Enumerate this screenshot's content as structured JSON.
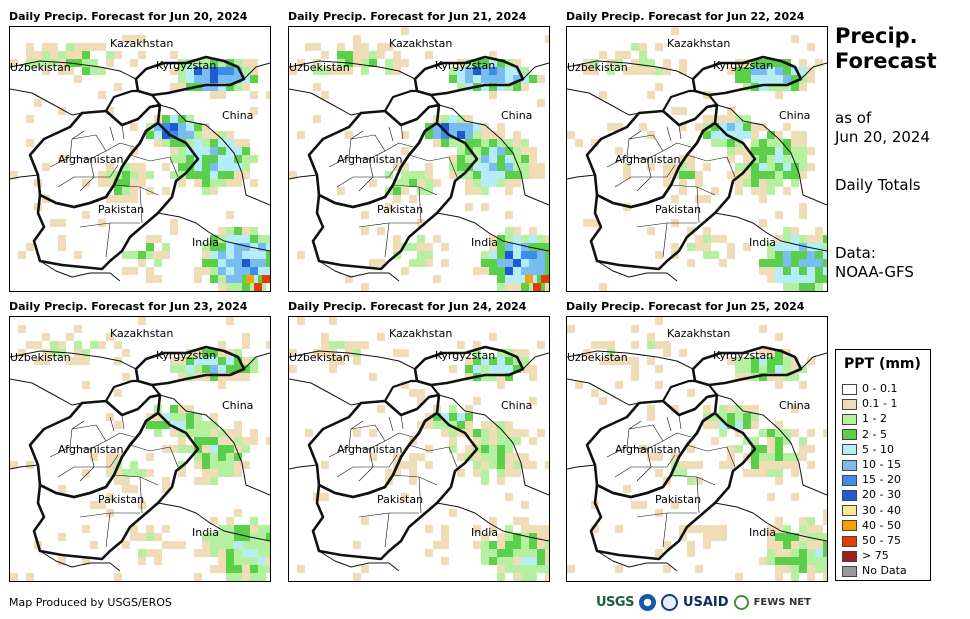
{
  "panels": [
    {
      "title": "Daily Precip. Forecast for Jun 20, 2024",
      "intensity": 0.95
    },
    {
      "title": "Daily Precip. Forecast for Jun 21, 2024",
      "intensity": 0.9
    },
    {
      "title": "Daily Precip. Forecast for Jun 22, 2024",
      "intensity": 0.75
    },
    {
      "title": "Daily Precip. Forecast for Jun 23, 2024",
      "intensity": 0.6
    },
    {
      "title": "Daily Precip. Forecast for Jun 24, 2024",
      "intensity": 0.55
    },
    {
      "title": "Daily Precip. Forecast for Jun 25, 2024",
      "intensity": 0.5
    }
  ],
  "map_labels": {
    "kazakhstan": "Kazakhstan",
    "uzbekistan": "Uzbekistan",
    "kyrgyzstan": "Kyrgyzstan",
    "china": "China",
    "afghanistan": "Afghanistan",
    "pakistan": "Pakistan",
    "india": "India"
  },
  "side": {
    "title_line1": "Precip.",
    "title_line2": "Forecast",
    "asof_line1": "as of",
    "asof_line2": "Jun 20, 2024",
    "totals": "Daily Totals",
    "data_line1": "Data:",
    "data_line2": "NOAA-GFS"
  },
  "legend": {
    "title": "PPT (mm)",
    "items": [
      {
        "label": "0 - 0.1",
        "color": "#ffffff"
      },
      {
        "label": "0.1 - 1",
        "color": "#f1dcb8"
      },
      {
        "label": "1 - 2",
        "color": "#b4f0a0"
      },
      {
        "label": "2 - 5",
        "color": "#5ad04a"
      },
      {
        "label": "5 - 10",
        "color": "#b4ecf8"
      },
      {
        "label": "10 - 15",
        "color": "#78bcf0"
      },
      {
        "label": "15 - 20",
        "color": "#3c8ce8"
      },
      {
        "label": "20 - 30",
        "color": "#1e5ad2"
      },
      {
        "label": "30 - 40",
        "color": "#fae68c"
      },
      {
        "label": "40 - 50",
        "color": "#faa000"
      },
      {
        "label": "50 - 75",
        "color": "#e63c00"
      },
      {
        "label": "> 75",
        "color": "#a01e1e"
      },
      {
        "label": "No Data",
        "color": "#999999"
      }
    ]
  },
  "footer": {
    "produced_by": "Map Produced by USGS/EROS"
  },
  "logos": {
    "usgs": "USGS",
    "usaid": "USAID",
    "fews": "FEWS NET"
  }
}
